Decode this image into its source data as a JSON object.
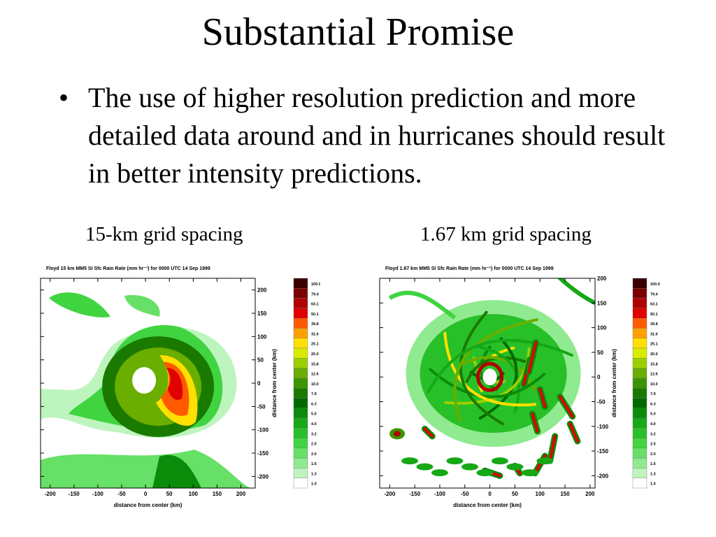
{
  "slide": {
    "title": "Substantial Promise",
    "bullet": "The use of higher resolution prediction and more detailed data around and in hurricanes should result in better intensity predictions.",
    "bullet_glyph": "•"
  },
  "panels": [
    {
      "caption": "15-km grid spacing",
      "plot_title": "Floyd 15 km MM5 SI Sfc Rain Rate (mm hr⁻¹) for 0000 UTC 14 Sep 1999"
    },
    {
      "caption": "1.67 km grid spacing",
      "plot_title": "Floyd 1.67 km MM5 SI Sfc Rain Rate (mm hr⁻¹) for 0000 UTC 14 Sep 1999"
    }
  ],
  "chart_data": [
    {
      "type": "heatmap",
      "title": "Floyd 15 km MM5 SI Sfc Rain Rate (mm hr⁻¹) for 0000 UTC 14 Sep 1999",
      "xlabel": "distance from center (km)",
      "ylabel": "distance from center (km)",
      "xlim": [
        -220,
        230
      ],
      "ylim": [
        -225,
        225
      ],
      "x_ticks": [
        "-200",
        "-150",
        "-100",
        "-50",
        "0",
        "50",
        "100",
        "150",
        "200"
      ],
      "y_ticks": [
        "200",
        "150",
        "100",
        "50",
        "0",
        "-50",
        "-100",
        "-150",
        "-200"
      ],
      "colorbar_levels": [
        "100.0",
        "79.4",
        "63.1",
        "50.1",
        "39.8",
        "31.6",
        "25.1",
        "20.0",
        "15.8",
        "12.6",
        "10.0",
        "7.9",
        "6.3",
        "5.0",
        "4.0",
        "3.2",
        "2.5",
        "2.0",
        "1.6",
        "1.3",
        "1.0"
      ],
      "colorbar_colors": [
        "#3a0000",
        "#7a0000",
        "#b00000",
        "#e00000",
        "#ff5a00",
        "#ffa000",
        "#ffe000",
        "#d8ec00",
        "#9ccf00",
        "#6aae00",
        "#3c9400",
        "#1a7a00",
        "#006a00",
        "#0a8c0a",
        "#16a816",
        "#28c028",
        "#40d440",
        "#66e066",
        "#90ea90",
        "#bef4be",
        "#ffffff"
      ]
    },
    {
      "type": "heatmap",
      "title": "Floyd 1.67 km MM5 SI Sfc Rain Rate (mm hr⁻¹) for 0000 UTC 14 Sep 1999",
      "xlabel": "distance from center (km)",
      "ylabel": "distance from center (km)",
      "xlim": [
        -220,
        210
      ],
      "ylim": [
        -225,
        200
      ],
      "x_ticks": [
        "-200",
        "-150",
        "-100",
        "-50",
        "0",
        "50",
        "100",
        "150",
        "200"
      ],
      "y_ticks": [
        "200",
        "150",
        "100",
        "50",
        "0",
        "-50",
        "-100",
        "-150",
        "-200"
      ],
      "colorbar_levels": [
        "100.0",
        "79.4",
        "63.1",
        "50.1",
        "39.8",
        "31.6",
        "25.1",
        "20.0",
        "15.8",
        "12.6",
        "10.0",
        "7.9",
        "6.3",
        "5.0",
        "4.0",
        "3.2",
        "2.5",
        "2.0",
        "1.6",
        "1.3",
        "1.0"
      ],
      "colorbar_colors": [
        "#3a0000",
        "#7a0000",
        "#b00000",
        "#e00000",
        "#ff5a00",
        "#ffa000",
        "#ffe000",
        "#d8ec00",
        "#9ccf00",
        "#6aae00",
        "#3c9400",
        "#1a7a00",
        "#006a00",
        "#0a8c0a",
        "#16a816",
        "#28c028",
        "#40d440",
        "#66e066",
        "#90ea90",
        "#bef4be",
        "#ffffff"
      ]
    }
  ]
}
